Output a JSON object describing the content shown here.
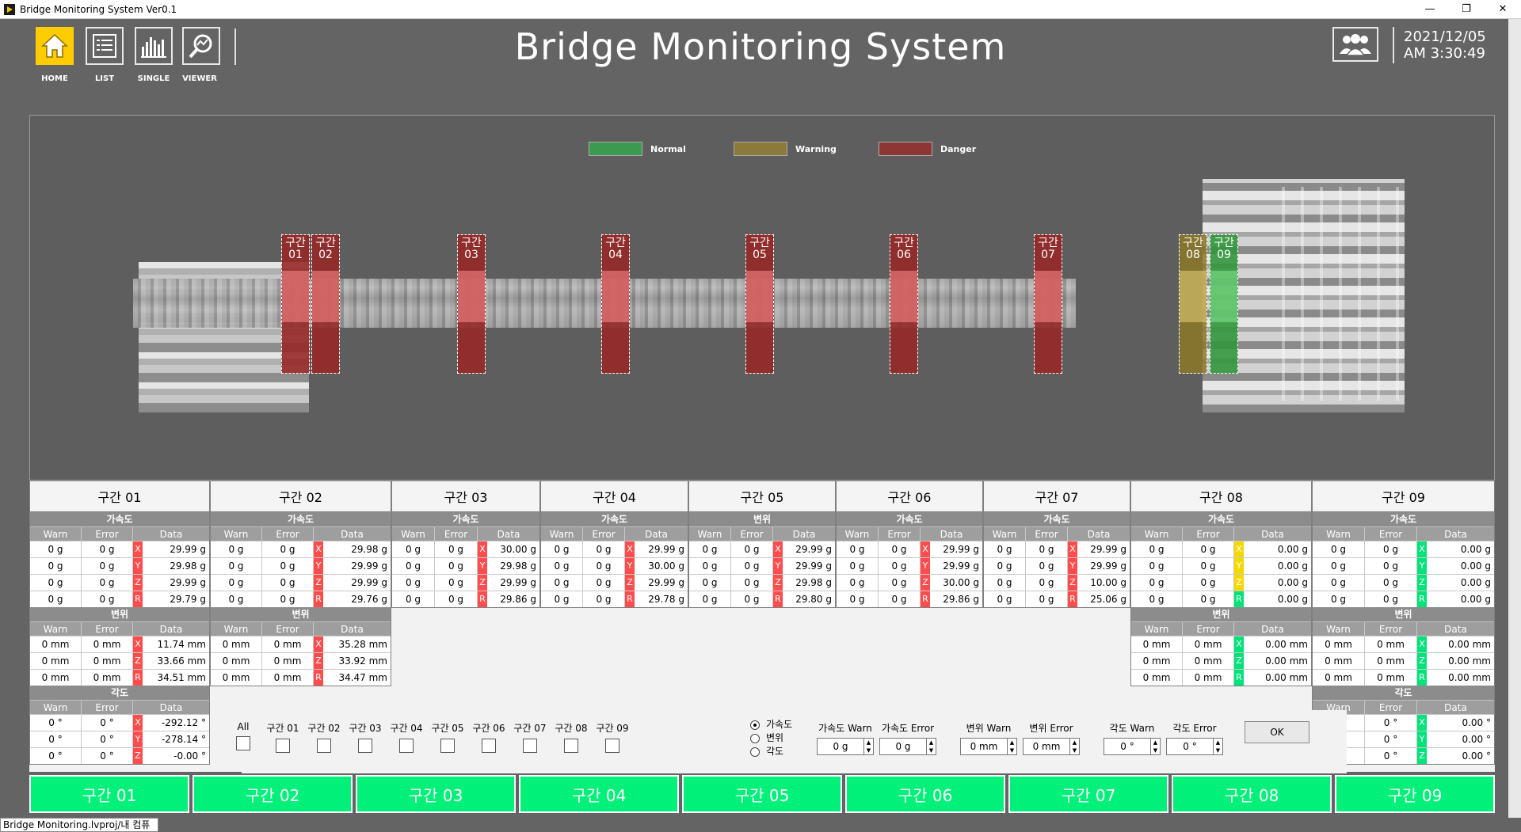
{
  "window": {
    "title": "Bridge Monitoring System Ver0.1",
    "minimize": "—",
    "restore": "❐",
    "close": "✕"
  },
  "nav": [
    {
      "id": "home",
      "label": "HOME"
    },
    {
      "id": "list",
      "label": "LIST"
    },
    {
      "id": "single",
      "label": "SINGLE"
    },
    {
      "id": "viewer",
      "label": "VIEWER"
    }
  ],
  "app_title": "Bridge Monitoring System",
  "datetime": {
    "date": "2021/12/05",
    "time": "AM 3:30:49"
  },
  "legend": [
    {
      "label": "Normal",
      "color": "#3a9a50"
    },
    {
      "label": "Warning",
      "color": "#8c7a3a"
    },
    {
      "label": "Danger",
      "color": "#8e3535"
    }
  ],
  "segments": [
    {
      "n1": "구간",
      "n2": "01",
      "status": "danger"
    },
    {
      "n1": "구간",
      "n2": "02",
      "status": "danger"
    },
    {
      "n1": "구간",
      "n2": "03",
      "status": "danger"
    },
    {
      "n1": "구간",
      "n2": "04",
      "status": "danger"
    },
    {
      "n1": "구간",
      "n2": "05",
      "status": "danger"
    },
    {
      "n1": "구간",
      "n2": "06",
      "status": "danger"
    },
    {
      "n1": "구간",
      "n2": "07",
      "status": "danger"
    },
    {
      "n1": "구간",
      "n2": "08",
      "status": "warning"
    },
    {
      "n1": "구간",
      "n2": "09",
      "status": "normal"
    }
  ],
  "col_headers": {
    "warn": "Warn",
    "error": "Error",
    "data": "Data"
  },
  "sections": [
    {
      "title": "구간 01",
      "groups": [
        {
          "name": "가속도",
          "rows": [
            [
              "0 g",
              "0 g",
              "X",
              "r",
              "29.99 g"
            ],
            [
              "0 g",
              "0 g",
              "Y",
              "r",
              "29.98 g"
            ],
            [
              "0 g",
              "0 g",
              "Z",
              "r",
              "29.99 g"
            ],
            [
              "0 g",
              "0 g",
              "R",
              "r",
              "29.79 g"
            ]
          ]
        },
        {
          "name": "변위",
          "rows": [
            [
              "0 mm",
              "0 mm",
              "X",
              "r",
              "11.74 mm"
            ],
            [
              "0 mm",
              "0 mm",
              "Z",
              "r",
              "33.66 mm"
            ],
            [
              "0 mm",
              "0 mm",
              "R",
              "r",
              "34.51 mm"
            ]
          ]
        },
        {
          "name": "각도",
          "rows": [
            [
              "0 °",
              "0 °",
              "X",
              "r",
              "-292.12 °"
            ],
            [
              "0 °",
              "0 °",
              "Y",
              "r",
              "-278.14 °"
            ],
            [
              "0 °",
              "0 °",
              "Z",
              "r",
              "-0.00 °"
            ]
          ]
        }
      ]
    },
    {
      "title": "구간 02",
      "groups": [
        {
          "name": "가속도",
          "rows": [
            [
              "0 g",
              "0 g",
              "X",
              "r",
              "29.98 g"
            ],
            [
              "0 g",
              "0 g",
              "Y",
              "r",
              "29.99 g"
            ],
            [
              "0 g",
              "0 g",
              "Z",
              "r",
              "29.99 g"
            ],
            [
              "0 g",
              "0 g",
              "R",
              "r",
              "29.76 g"
            ]
          ]
        },
        {
          "name": "변위",
          "rows": [
            [
              "0 mm",
              "0 mm",
              "X",
              "r",
              "35.28 mm"
            ],
            [
              "0 mm",
              "0 mm",
              "Z",
              "r",
              "33.92 mm"
            ],
            [
              "0 mm",
              "0 mm",
              "R",
              "r",
              "34.47 mm"
            ]
          ]
        }
      ]
    },
    {
      "title": "구간 03",
      "groups": [
        {
          "name": "가속도",
          "rows": [
            [
              "0 g",
              "0 g",
              "X",
              "r",
              "30.00 g"
            ],
            [
              "0 g",
              "0 g",
              "Y",
              "r",
              "29.98 g"
            ],
            [
              "0 g",
              "0 g",
              "Z",
              "r",
              "29.99 g"
            ],
            [
              "0 g",
              "0 g",
              "R",
              "r",
              "29.86 g"
            ]
          ]
        }
      ]
    },
    {
      "title": "구간 04",
      "groups": [
        {
          "name": "가속도",
          "rows": [
            [
              "0 g",
              "0 g",
              "X",
              "r",
              "29.99 g"
            ],
            [
              "0 g",
              "0 g",
              "Y",
              "r",
              "30.00 g"
            ],
            [
              "0 g",
              "0 g",
              "Z",
              "r",
              "29.99 g"
            ],
            [
              "0 g",
              "0 g",
              "R",
              "r",
              "29.78 g"
            ]
          ]
        }
      ]
    },
    {
      "title": "구간 05",
      "groups": [
        {
          "name": "변위",
          "rows": [
            [
              "0 g",
              "0 g",
              "X",
              "r",
              "29.99 g"
            ],
            [
              "0 g",
              "0 g",
              "Y",
              "r",
              "29.99 g"
            ],
            [
              "0 g",
              "0 g",
              "Z",
              "r",
              "29.98 g"
            ],
            [
              "0 g",
              "0 g",
              "R",
              "r",
              "29.80 g"
            ]
          ]
        }
      ]
    },
    {
      "title": "구간 06",
      "groups": [
        {
          "name": "가속도",
          "rows": [
            [
              "0 g",
              "0 g",
              "X",
              "r",
              "29.99 g"
            ],
            [
              "0 g",
              "0 g",
              "Y",
              "r",
              "29.99 g"
            ],
            [
              "0 g",
              "0 g",
              "Z",
              "r",
              "30.00 g"
            ],
            [
              "0 g",
              "0 g",
              "R",
              "r",
              "29.86 g"
            ]
          ]
        }
      ]
    },
    {
      "title": "구간 07",
      "groups": [
        {
          "name": "가속도",
          "rows": [
            [
              "0 g",
              "0 g",
              "X",
              "r",
              "29.99 g"
            ],
            [
              "0 g",
              "0 g",
              "Y",
              "r",
              "29.99 g"
            ],
            [
              "0 g",
              "0 g",
              "Z",
              "r",
              "10.00 g"
            ],
            [
              "0 g",
              "0 g",
              "R",
              "r",
              "25.06 g"
            ]
          ]
        }
      ]
    },
    {
      "title": "구간 08",
      "groups": [
        {
          "name": "가속도",
          "rows": [
            [
              "0 g",
              "0 g",
              "X",
              "y",
              "0.00 g"
            ],
            [
              "0 g",
              "0 g",
              "Y",
              "y",
              "0.00 g"
            ],
            [
              "0 g",
              "0 g",
              "Z",
              "y",
              "0.00 g"
            ],
            [
              "0 g",
              "0 g",
              "R",
              "g",
              "0.00 g"
            ]
          ]
        },
        {
          "name": "변위",
          "rows": [
            [
              "0 mm",
              "0 mm",
              "X",
              "g",
              "0.00 mm"
            ],
            [
              "0 mm",
              "0 mm",
              "Z",
              "g",
              "0.00 mm"
            ],
            [
              "0 mm",
              "0 mm",
              "R",
              "g",
              "0.00 mm"
            ]
          ]
        }
      ]
    },
    {
      "title": "구간 09",
      "groups": [
        {
          "name": "가속도",
          "rows": [
            [
              "0 g",
              "0 g",
              "X",
              "g",
              "0.00 g"
            ],
            [
              "0 g",
              "0 g",
              "Y",
              "g",
              "0.00 g"
            ],
            [
              "0 g",
              "0 g",
              "Z",
              "g",
              "0.00 g"
            ],
            [
              "0 g",
              "0 g",
              "R",
              "g",
              "0.00 g"
            ]
          ]
        },
        {
          "name": "변위",
          "rows": [
            [
              "0 mm",
              "0 mm",
              "X",
              "g",
              "0.00 mm"
            ],
            [
              "0 mm",
              "0 mm",
              "Z",
              "g",
              "0.00 mm"
            ],
            [
              "0 mm",
              "0 mm",
              "R",
              "g",
              "0.00 mm"
            ]
          ]
        },
        {
          "name": "각도",
          "rows": [
            [
              "0 °",
              "0 °",
              "X",
              "g",
              "0.00 °"
            ],
            [
              "0 °",
              "0 °",
              "Y",
              "g",
              "0.00 °"
            ],
            [
              "0 °",
              "0 °",
              "Z",
              "g",
              "0.00 °"
            ]
          ]
        }
      ]
    }
  ],
  "filter": {
    "checkboxes": [
      "All",
      "구간 01",
      "구간 02",
      "구간 03",
      "구간 04",
      "구간 05",
      "구간 06",
      "구간 07",
      "구간 08",
      "구간 09"
    ],
    "radios": [
      {
        "label": "가속도",
        "checked": true
      },
      {
        "label": "변위",
        "checked": false
      },
      {
        "label": "각도",
        "checked": false
      }
    ],
    "spinners": [
      {
        "label": "가속도 Warn",
        "value": "0 g"
      },
      {
        "label": "가속도 Error",
        "value": "0 g"
      },
      {
        "label": "변위 Warn",
        "value": "0 mm"
      },
      {
        "label": "변위 Error",
        "value": "0 mm"
      },
      {
        "label": "각도 Warn",
        "value": "0 °"
      },
      {
        "label": "각도 Error",
        "value": "0 °"
      }
    ],
    "ok_label": "OK"
  },
  "bottom_buttons": [
    "구간 01",
    "구간 02",
    "구간 03",
    "구간 04",
    "구간 05",
    "구간 06",
    "구간 07",
    "구간 08",
    "구간 09"
  ],
  "status": "Bridge Monitoring.lvproj/내 컴퓨터"
}
